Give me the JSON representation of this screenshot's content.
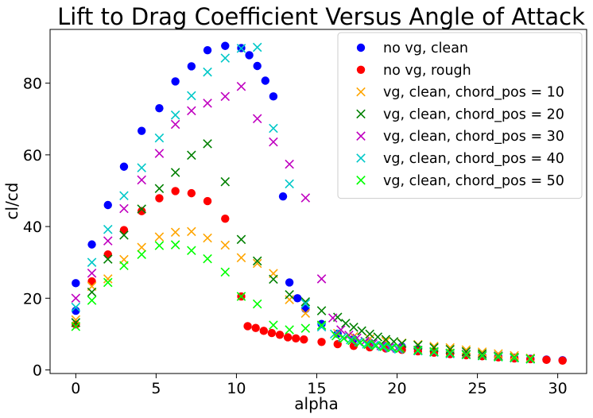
{
  "chart_data": {
    "type": "scatter",
    "title": "Lift to Drag Coefficient Versus Angle of Attack",
    "xlabel": "alpha",
    "ylabel": "cl/cd",
    "xlim": [
      -1.6,
      31.8
    ],
    "ylim": [
      -1,
      95
    ],
    "xticks": [
      0,
      5,
      10,
      15,
      20,
      25,
      30
    ],
    "yticks": [
      0,
      20,
      40,
      60,
      80
    ],
    "grid": false,
    "legend_position": "top-right",
    "series": [
      {
        "name": "no vg, clean",
        "marker": "circle",
        "color": "#0000ff",
        "points": [
          [
            0,
            16.5
          ],
          [
            0,
            24.2
          ],
          [
            1,
            35.0
          ],
          [
            2,
            46.0
          ],
          [
            3,
            56.7
          ],
          [
            4.1,
            66.7
          ],
          [
            5.2,
            73.0
          ],
          [
            6.2,
            80.5
          ],
          [
            7.2,
            84.7
          ],
          [
            8.2,
            89.2
          ],
          [
            9.3,
            90.4
          ],
          [
            10.3,
            89.8
          ],
          [
            10.8,
            87.8
          ],
          [
            11.3,
            84.8
          ],
          [
            11.8,
            80.7
          ],
          [
            12.3,
            76.3
          ],
          [
            12.9,
            48.4
          ],
          [
            13.3,
            24.4
          ],
          [
            13.8,
            20.0
          ],
          [
            14.3,
            17.0
          ],
          [
            15.3,
            12.8
          ],
          [
            16.3,
            10.1
          ],
          [
            17.3,
            8.6
          ],
          [
            18.3,
            7.6
          ],
          [
            19.3,
            7.0
          ],
          [
            20.3,
            6.5
          ],
          [
            21.3,
            5.9
          ],
          [
            22.3,
            5.2
          ],
          [
            23.3,
            4.7
          ],
          [
            24.3,
            4.3
          ],
          [
            25.3,
            4.0
          ],
          [
            26.3,
            3.7
          ],
          [
            27.3,
            3.4
          ],
          [
            28.3,
            3.1
          ],
          [
            29.3,
            2.9
          ],
          [
            30.3,
            2.7
          ]
        ]
      },
      {
        "name": "no vg, rough",
        "marker": "circle",
        "color": "#ff0000",
        "points": [
          [
            0,
            12.7
          ],
          [
            1,
            24.7
          ],
          [
            2,
            32.2
          ],
          [
            3,
            39.0
          ],
          [
            4.1,
            44.3
          ],
          [
            5.2,
            47.9
          ],
          [
            6.2,
            49.9
          ],
          [
            7.2,
            49.3
          ],
          [
            8.2,
            47.1
          ],
          [
            9.3,
            42.2
          ],
          [
            10.3,
            20.5
          ],
          [
            10.7,
            12.2
          ],
          [
            11.2,
            11.7
          ],
          [
            11.7,
            10.9
          ],
          [
            12.2,
            10.3
          ],
          [
            12.7,
            9.8
          ],
          [
            13.2,
            9.1
          ],
          [
            13.7,
            8.8
          ],
          [
            14.2,
            8.5
          ],
          [
            15.3,
            7.8
          ],
          [
            16.3,
            7.2
          ],
          [
            17.3,
            6.7
          ],
          [
            18.3,
            6.3
          ],
          [
            19.3,
            6.0
          ],
          [
            20.3,
            5.6
          ],
          [
            21.3,
            5.2
          ],
          [
            22.3,
            4.8
          ],
          [
            23.3,
            4.4
          ],
          [
            24.3,
            4.1
          ],
          [
            25.3,
            3.8
          ],
          [
            26.3,
            3.5
          ],
          [
            27.3,
            3.2
          ],
          [
            28.3,
            3.0
          ],
          [
            29.3,
            2.8
          ],
          [
            30.3,
            2.6
          ]
        ]
      },
      {
        "name": "vg, clean, chord_pos = 10",
        "marker": "x",
        "color": "#ffa500",
        "points": [
          [
            0,
            14.0
          ],
          [
            1,
            23.3
          ],
          [
            2,
            25.4
          ],
          [
            3,
            30.8
          ],
          [
            4.1,
            34.2
          ],
          [
            5.2,
            37.1
          ],
          [
            6.2,
            38.4
          ],
          [
            7.2,
            38.6
          ],
          [
            8.2,
            36.8
          ],
          [
            9.3,
            34.8
          ],
          [
            10.3,
            31.3
          ],
          [
            11.3,
            29.7
          ],
          [
            12.3,
            26.9
          ],
          [
            13.3,
            19.6
          ],
          [
            14.3,
            15.8
          ],
          [
            15.3,
            12.3
          ],
          [
            16.3,
            10.2
          ],
          [
            17.3,
            9.3
          ],
          [
            18.3,
            8.7
          ],
          [
            19.3,
            8.0
          ],
          [
            20.3,
            7.5
          ],
          [
            21.3,
            7.1
          ],
          [
            22.3,
            6.6
          ],
          [
            23.3,
            6.2
          ],
          [
            24.3,
            5.6
          ],
          [
            25.3,
            5.0
          ],
          [
            26.3,
            4.5
          ],
          [
            27.3,
            4.0
          ],
          [
            28.3,
            3.3
          ]
        ]
      },
      {
        "name": "vg, clean, chord_pos = 20",
        "marker": "x",
        "color": "#008000",
        "points": [
          [
            0,
            13.2
          ],
          [
            1,
            21.7
          ],
          [
            2,
            30.9
          ],
          [
            3,
            37.6
          ],
          [
            4.1,
            44.9
          ],
          [
            5.2,
            50.6
          ],
          [
            6.2,
            55.1
          ],
          [
            7.2,
            59.9
          ],
          [
            8.2,
            63.1
          ],
          [
            9.3,
            52.5
          ],
          [
            10.3,
            36.4
          ],
          [
            11.3,
            30.4
          ],
          [
            12.3,
            25.3
          ],
          [
            13.3,
            21.0
          ],
          [
            14.3,
            19.0
          ],
          [
            15.3,
            16.5
          ],
          [
            16.3,
            14.7
          ],
          [
            16.8,
            13.0
          ],
          [
            17.3,
            11.9
          ],
          [
            17.8,
            10.9
          ],
          [
            18.3,
            10.0
          ],
          [
            18.8,
            9.2
          ],
          [
            19.3,
            8.5
          ],
          [
            19.8,
            7.9
          ],
          [
            20.3,
            7.4
          ],
          [
            21.3,
            6.9
          ],
          [
            22.3,
            6.2
          ],
          [
            23.3,
            5.7
          ],
          [
            24.3,
            5.1
          ],
          [
            25.3,
            4.5
          ],
          [
            26.3,
            3.9
          ],
          [
            27.3,
            3.5
          ],
          [
            28.3,
            3.1
          ]
        ]
      },
      {
        "name": "vg, clean, chord_pos = 30",
        "marker": "x",
        "color": "#c000c0",
        "points": [
          [
            0,
            20.0
          ],
          [
            1,
            27.0
          ],
          [
            2,
            36.0
          ],
          [
            3,
            45.0
          ],
          [
            4.1,
            53.0
          ],
          [
            5.2,
            60.4
          ],
          [
            6.2,
            68.5
          ],
          [
            7.2,
            72.3
          ],
          [
            8.2,
            74.4
          ],
          [
            9.3,
            76.3
          ],
          [
            10.3,
            79.1
          ],
          [
            11.3,
            70.1
          ],
          [
            12.3,
            63.6
          ],
          [
            13.3,
            57.4
          ],
          [
            14.3,
            48.0
          ],
          [
            15.3,
            25.4
          ],
          [
            16.0,
            14.5
          ],
          [
            16.5,
            11.2
          ],
          [
            17.0,
            9.7
          ],
          [
            17.5,
            8.9
          ],
          [
            18.0,
            8.0
          ],
          [
            18.5,
            7.3
          ],
          [
            19.0,
            6.7
          ],
          [
            19.5,
            6.3
          ],
          [
            20.0,
            6.0
          ],
          [
            21.3,
            5.5
          ],
          [
            22.3,
            5.1
          ],
          [
            23.3,
            4.7
          ],
          [
            24.3,
            4.4
          ],
          [
            25.3,
            4.1
          ],
          [
            26.3,
            3.8
          ],
          [
            27.3,
            3.4
          ],
          [
            28.3,
            3.1
          ]
        ]
      },
      {
        "name": "vg, clean, chord_pos = 40",
        "marker": "x",
        "color": "#00c8c8",
        "points": [
          [
            0,
            17.5
          ],
          [
            1,
            30.0
          ],
          [
            2,
            39.2
          ],
          [
            3,
            48.6
          ],
          [
            4.1,
            56.4
          ],
          [
            5.2,
            64.7
          ],
          [
            6.2,
            71.1
          ],
          [
            7.2,
            76.5
          ],
          [
            8.2,
            83.1
          ],
          [
            9.3,
            87.0
          ],
          [
            10.3,
            89.7
          ],
          [
            11.3,
            90.0
          ],
          [
            12.3,
            67.4
          ],
          [
            13.3,
            51.9
          ],
          [
            14.3,
            18.5
          ],
          [
            15.3,
            12.0
          ],
          [
            16.1,
            10.0
          ],
          [
            16.6,
            9.1
          ],
          [
            17.1,
            8.4
          ],
          [
            17.6,
            7.8
          ],
          [
            18.1,
            7.2
          ],
          [
            18.6,
            6.9
          ],
          [
            19.1,
            6.5
          ],
          [
            19.6,
            6.1
          ],
          [
            20.1,
            5.8
          ],
          [
            21.3,
            5.3
          ],
          [
            22.3,
            4.9
          ],
          [
            23.3,
            4.5
          ],
          [
            24.3,
            4.2
          ],
          [
            25.3,
            3.9
          ],
          [
            26.3,
            3.6
          ],
          [
            27.3,
            3.3
          ],
          [
            28.3,
            3.0
          ]
        ]
      },
      {
        "name": "vg, clean, chord_pos = 50",
        "marker": "x",
        "color": "#00ff00",
        "points": [
          [
            0,
            12.1
          ],
          [
            1,
            19.4
          ],
          [
            2,
            24.4
          ],
          [
            3,
            29.1
          ],
          [
            4.1,
            32.2
          ],
          [
            5.2,
            34.7
          ],
          [
            6.2,
            34.9
          ],
          [
            7.2,
            33.3
          ],
          [
            8.2,
            31.0
          ],
          [
            9.3,
            27.3
          ],
          [
            10.3,
            20.5
          ],
          [
            11.3,
            18.4
          ],
          [
            12.3,
            12.5
          ],
          [
            13.3,
            11.2
          ],
          [
            14.3,
            11.6
          ],
          [
            15.3,
            12.5
          ],
          [
            16.2,
            9.5
          ],
          [
            16.7,
            8.8
          ],
          [
            17.2,
            8.2
          ],
          [
            17.7,
            7.6
          ],
          [
            18.2,
            7.1
          ],
          [
            18.7,
            6.8
          ],
          [
            19.2,
            6.5
          ],
          [
            19.7,
            6.2
          ],
          [
            20.2,
            6.0
          ],
          [
            21.3,
            5.5
          ],
          [
            22.3,
            5.1
          ],
          [
            23.3,
            4.7
          ],
          [
            24.3,
            4.3
          ],
          [
            25.3,
            4.0
          ],
          [
            26.3,
            3.7
          ],
          [
            27.3,
            3.4
          ],
          [
            28.3,
            3.1
          ]
        ]
      }
    ]
  }
}
